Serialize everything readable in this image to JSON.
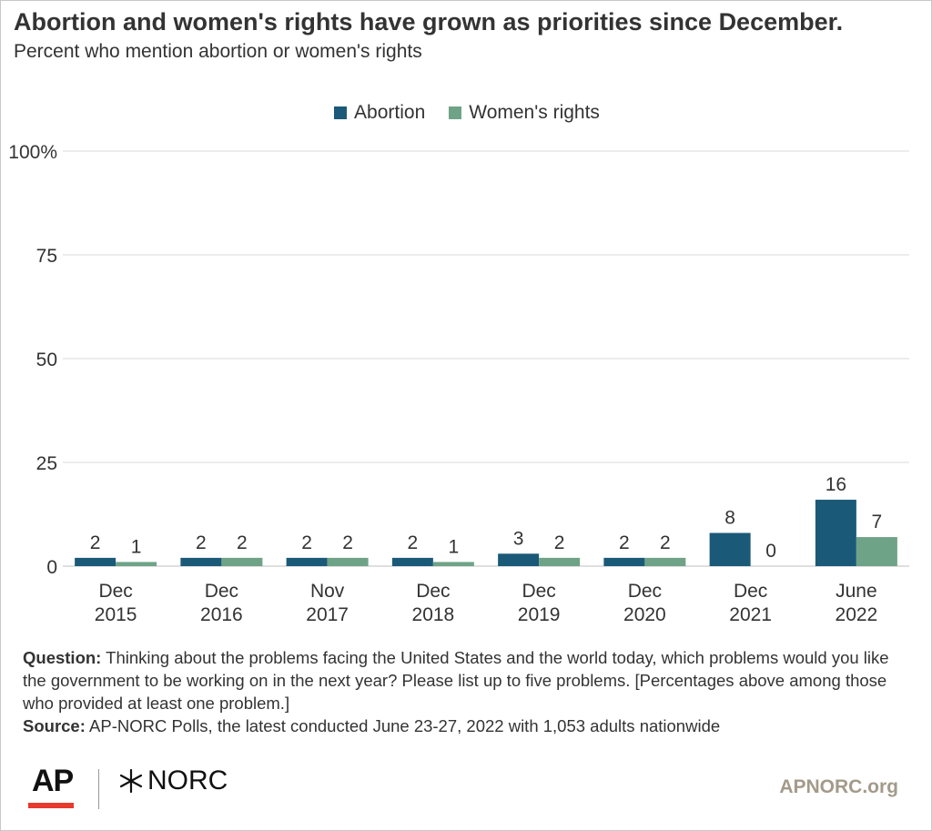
{
  "title": "Abortion and women's rights have grown as priorities since December.",
  "subtitle": "Percent who mention abortion or women's rights",
  "colors": {
    "abortion": "#1b5978",
    "womens_rights": "#6fa387",
    "grid": "#d9d9d9",
    "text": "#333333"
  },
  "chart_data": {
    "type": "bar",
    "categories": [
      [
        "Dec",
        "2015"
      ],
      [
        "Dec",
        "2016"
      ],
      [
        "Nov",
        "2017"
      ],
      [
        "Dec",
        "2018"
      ],
      [
        "Dec",
        "2019"
      ],
      [
        "Dec",
        "2020"
      ],
      [
        "Dec",
        "2021"
      ],
      [
        "June",
        "2022"
      ]
    ],
    "series": [
      {
        "name": "Abortion",
        "values": [
          2,
          2,
          2,
          2,
          3,
          2,
          8,
          16
        ]
      },
      {
        "name": "Women's rights",
        "values": [
          1,
          2,
          2,
          1,
          2,
          2,
          0,
          7
        ]
      }
    ],
    "ylim": [
      0,
      100
    ],
    "yticks": [
      0,
      25,
      50,
      75,
      100
    ],
    "ytick_labels": [
      "0",
      "25",
      "50",
      "75",
      "100%"
    ],
    "grid": true,
    "legend": "top-center"
  },
  "notes": {
    "question_label": "Question:",
    "question_text": " Thinking about the problems facing the United States and the world today, which problems would you like the government to be working on in the next year? Please list up to five problems. [Percentages above among those who provided at least one problem.]",
    "source_label": "Source:",
    "source_text": " AP-NORC Polls, the latest conducted June 23-27, 2022 with 1,053 adults nationwide"
  },
  "footer": {
    "ap_logo": "AP",
    "norc_logo": "NORC",
    "site": "APNORC.org",
    "norc_icon": "norc-star-icon"
  }
}
